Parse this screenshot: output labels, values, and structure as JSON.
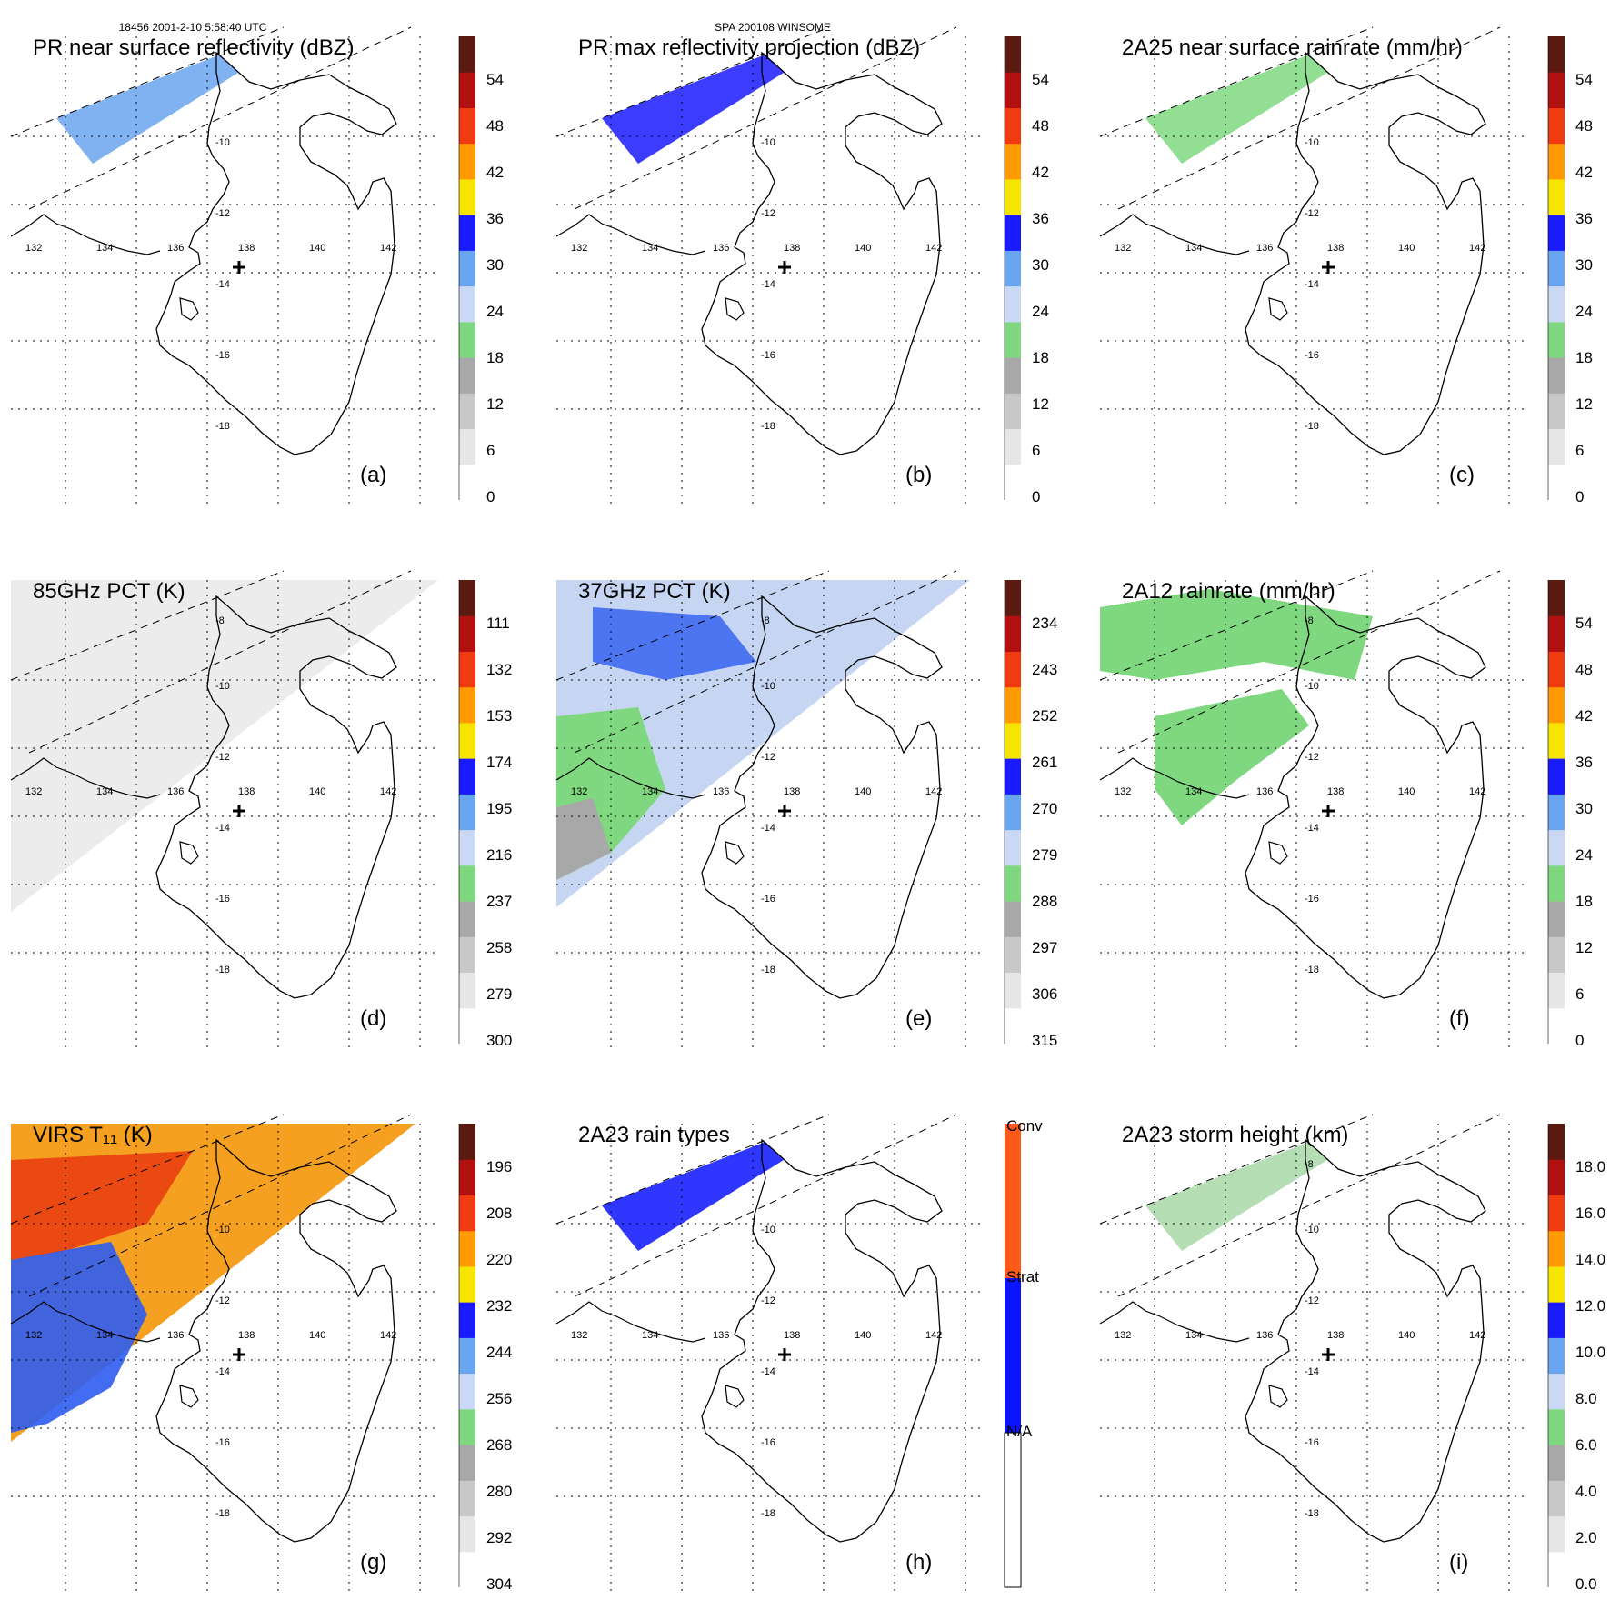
{
  "header": {
    "left": "18456 2001-2-10 5:58:40 UTC",
    "center": "SPA 200108 WINSOME"
  },
  "map_grid": {
    "lon_labels": [
      "132",
      "134",
      "136",
      "138",
      "140",
      "142"
    ],
    "lat_labels": [
      "-10",
      "-12",
      "-14",
      "-16",
      "-18"
    ],
    "lat_labels_top": [
      "-8",
      "-10",
      "-12",
      "-14",
      "-16",
      "-18"
    ]
  },
  "palette": {
    "gray_light": "#ededed",
    "gray_mid": "#cfcfcf",
    "gray_dark": "#a8a8a8",
    "green": "#7fd87f",
    "blue_light": "#c9d8f4",
    "blue_mid": "#6aa5f0",
    "blue_dark": "#1a1aff",
    "yellow": "#f5e500",
    "orange": "#ff9a00",
    "red": "#f03a10",
    "dark_red": "#b01010",
    "maroon": "#5a1a10",
    "rain_conv": "#ff5a1a",
    "rain_strat": "#0a14ff"
  },
  "panels": [
    {
      "id": "a",
      "title": "PR near surface reflectivity (dBZ)",
      "letter": "(a)",
      "colorbar_labels": [
        "54",
        "48",
        "42",
        "36",
        "30",
        "24",
        "18",
        "12",
        "6",
        "0"
      ]
    },
    {
      "id": "b",
      "title": "PR max reflectivity projection (dBZ)",
      "letter": "(b)",
      "colorbar_labels": [
        "54",
        "48",
        "42",
        "36",
        "30",
        "24",
        "18",
        "12",
        "6",
        "0"
      ]
    },
    {
      "id": "c",
      "title": "2A25 near surface rainrate (mm/hr)",
      "letter": "(c)",
      "colorbar_labels": [
        "54",
        "48",
        "42",
        "36",
        "30",
        "24",
        "18",
        "12",
        "6",
        "0"
      ]
    },
    {
      "id": "d",
      "title": "85GHz PCT (K)",
      "letter": "(d)",
      "colorbar_labels": [
        "111",
        "132",
        "153",
        "174",
        "195",
        "216",
        "237",
        "258",
        "279",
        "300"
      ]
    },
    {
      "id": "e",
      "title": "37GHz PCT (K)",
      "letter": "(e)",
      "colorbar_labels": [
        "234",
        "243",
        "252",
        "261",
        "270",
        "279",
        "288",
        "297",
        "306",
        "315"
      ]
    },
    {
      "id": "f",
      "title": "2A12 rainrate (mm/hr)",
      "letter": "(f)",
      "colorbar_labels": [
        "54",
        "48",
        "42",
        "36",
        "30",
        "24",
        "18",
        "12",
        "6",
        "0"
      ]
    },
    {
      "id": "g",
      "title": "VIRS T₁₁ (K)",
      "letter": "(g)",
      "colorbar_labels": [
        "196",
        "208",
        "220",
        "232",
        "244",
        "256",
        "268",
        "280",
        "292",
        "304"
      ]
    },
    {
      "id": "h",
      "title": "2A23 rain types",
      "letter": "(h)",
      "colorbar_labels": [
        "Conv",
        "Strat",
        "N/A"
      ]
    },
    {
      "id": "i",
      "title": "2A23 storm height (km)",
      "letter": "(i)",
      "colorbar_labels": [
        "18.0",
        "16.0",
        "14.0",
        "12.0",
        "10.0",
        "8.0",
        "6.0",
        "4.0",
        "2.0",
        "0.0"
      ]
    }
  ]
}
